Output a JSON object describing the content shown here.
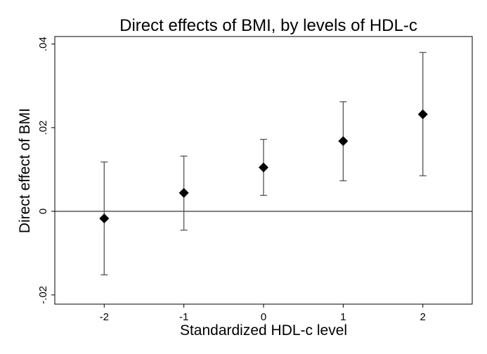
{
  "chart_data": {
    "type": "scatter",
    "title": "Direct effects of BMI, by levels of HDL-c",
    "xlabel": "Standardized HDL-c level",
    "ylabel": "Direct effect of BMI",
    "x_ticks": [
      "-2",
      "-1",
      "0",
      "1",
      "2"
    ],
    "y_ticks": [
      "-.02",
      "0",
      ".02",
      ".04"
    ],
    "xlim": [
      -2.62,
      2.62
    ],
    "ylim": [
      -0.0222,
      0.0418
    ],
    "reference_line_y": 0,
    "grid": false,
    "legend": "none",
    "marker": "diamond",
    "marker_color": "#000000",
    "errorbar_color": "#555555",
    "points": [
      {
        "x": -2,
        "y": -0.0017,
        "lower": -0.0152,
        "upper": 0.0118
      },
      {
        "x": -1,
        "y": 0.0044,
        "lower": -0.0045,
        "upper": 0.0132
      },
      {
        "x": 0,
        "y": 0.0105,
        "lower": 0.0038,
        "upper": 0.0172
      },
      {
        "x": 1,
        "y": 0.0168,
        "lower": 0.0073,
        "upper": 0.0262
      },
      {
        "x": 2,
        "y": 0.0232,
        "lower": 0.0085,
        "upper": 0.038
      }
    ]
  }
}
